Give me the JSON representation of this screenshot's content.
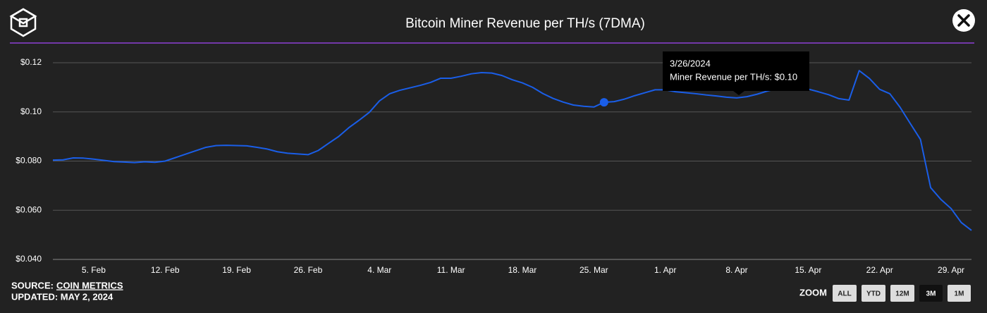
{
  "chart_data": {
    "type": "line",
    "title": "Bitcoin Miner Revenue per TH/s (7DMA)",
    "categories": [
      null,
      null,
      null,
      null,
      "5. Feb",
      null,
      null,
      null,
      null,
      null,
      null,
      "12. Feb",
      null,
      null,
      null,
      null,
      null,
      null,
      "19. Feb",
      null,
      null,
      null,
      null,
      null,
      null,
      "26. Feb",
      null,
      null,
      null,
      null,
      null,
      null,
      "4. Mar",
      null,
      null,
      null,
      null,
      null,
      null,
      "11. Mar",
      null,
      null,
      null,
      null,
      null,
      null,
      "18. Mar",
      null,
      null,
      null,
      null,
      null,
      null,
      "25. Mar",
      null,
      null,
      null,
      null,
      null,
      null,
      "1. Apr",
      null,
      null,
      null,
      null,
      null,
      null,
      "8. Apr",
      null,
      null,
      null,
      null,
      null,
      null,
      "15. Apr",
      null,
      null,
      null,
      null,
      null,
      null,
      "22. Apr",
      null,
      null,
      null,
      null,
      null,
      null,
      "29. Apr",
      null,
      null
    ],
    "series": [
      {
        "name": "Miner Revenue per TH/s",
        "color": "#1a5ee8",
        "values": [
          0.0804,
          0.0805,
          0.0813,
          0.0812,
          0.0808,
          0.0803,
          0.0798,
          0.0796,
          0.0794,
          0.0797,
          0.0795,
          0.08,
          0.0814,
          0.0828,
          0.0842,
          0.0856,
          0.0863,
          0.0864,
          0.0863,
          0.0862,
          0.0856,
          0.0849,
          0.0838,
          0.0832,
          0.0829,
          0.0826,
          0.0843,
          0.0872,
          0.09,
          0.0936,
          0.0966,
          0.0998,
          0.1045,
          0.1074,
          0.1088,
          0.1098,
          0.1108,
          0.112,
          0.1137,
          0.1137,
          0.1145,
          0.1155,
          0.116,
          0.1158,
          0.1148,
          0.1131,
          0.1118,
          0.11,
          0.1075,
          0.1055,
          0.104,
          0.1028,
          0.1023,
          0.102,
          0.1039,
          0.1042,
          0.1052,
          0.1066,
          0.1078,
          0.109,
          0.109,
          0.1082,
          0.1078,
          0.1074,
          0.1069,
          0.1065,
          0.106,
          0.1057,
          0.1062,
          0.1072,
          0.1085,
          0.1095,
          0.11,
          0.11,
          0.1093,
          0.1082,
          0.107,
          0.1054,
          0.1048,
          0.1168,
          0.1136,
          0.1092,
          0.1074,
          0.1019,
          0.0953,
          0.0888,
          0.0692,
          0.0644,
          0.0607,
          0.055,
          0.0518
        ]
      }
    ],
    "ylim": [
      0.04,
      0.12
    ],
    "yticks": [
      {
        "value": 0.04,
        "label": "$0.040"
      },
      {
        "value": 0.06,
        "label": "$0.060"
      },
      {
        "value": 0.08,
        "label": "$0.080"
      },
      {
        "value": 0.1,
        "label": "$0.10"
      },
      {
        "value": 0.12,
        "label": "$0.12"
      }
    ],
    "grid": true,
    "tooltip": {
      "title": "3/26/2024",
      "label": "Miner Revenue per TH/s: $0.10",
      "value": 0.1039
    }
  },
  "source": {
    "label": "SOURCE:",
    "name": "COIN METRICS"
  },
  "updated": "UPDATED: MAY 2, 2024",
  "zoom": {
    "label": "ZOOM",
    "buttons": [
      "ALL",
      "YTD",
      "12M",
      "3M",
      "1M"
    ],
    "active": "3M"
  }
}
